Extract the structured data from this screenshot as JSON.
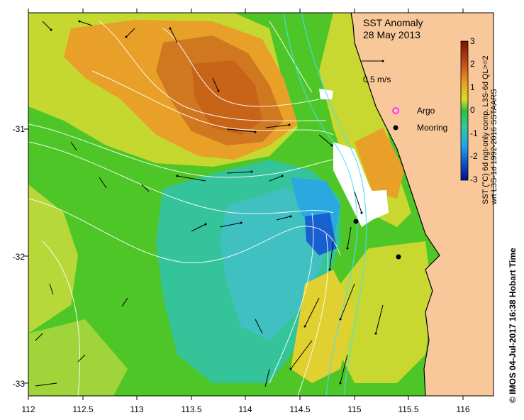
{
  "map": {
    "title": "SST Anomaly",
    "date": "28 May 2013",
    "scale_label": "0.5 m/s",
    "legend": {
      "argo_label": "Argo",
      "mooring_label": "Mooring",
      "argo_color": "#ff33ff",
      "mooring_color": "#000000"
    },
    "x_ticks": [
      "112",
      "112.5",
      "113",
      "113.5",
      "114",
      "114.5",
      "115",
      "115.5",
      "116"
    ],
    "y_ticks": [
      "-31",
      "-32",
      "-33"
    ],
    "land_color": "#f9c89a",
    "mooring_stations": [
      {
        "lon": 115.1,
        "lat": -31.73
      },
      {
        "lon": 115.42,
        "lat": -32.0
      }
    ]
  },
  "colorbar": {
    "ticks": [
      "3",
      "2",
      "1",
      "0",
      "-1",
      "-2",
      "-3"
    ],
    "range": [
      -3,
      3
    ],
    "caption_line1": "SST (°C) 6d ngt-only comp. L3S-6d QL>=2",
    "caption_line2": "wrt L3S-1d 1992-2016 SSTAARS"
  },
  "credit": "© IMOS 04-Jul-2017 16:38 Hobart Time"
}
